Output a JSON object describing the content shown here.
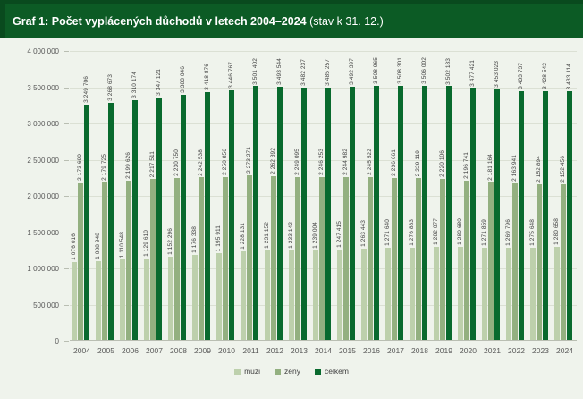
{
  "header": {
    "title": "Graf 1: Počet vyplácených důchodů v letech 2004–2024",
    "title_suffix": " (stav k 31. 12.)"
  },
  "colors": {
    "header_bg": "#0c5b25",
    "header_border": "#094a1e",
    "page_bg": "#eff3ec",
    "grid": "#dbe0d4",
    "axis": "#b9beb2",
    "value_text": "#3f3f3f",
    "tick_text": "#595959",
    "title_text": "#ffffff"
  },
  "chart_data": {
    "type": "bar",
    "title": "Graf 1: Počet vyplácených důchodů v letech 2004–2024 (stav k 31. 12.)",
    "categories": [
      2004,
      2005,
      2006,
      2007,
      2008,
      2009,
      2010,
      2011,
      2012,
      2013,
      2014,
      2015,
      2016,
      2017,
      2018,
      2019,
      2020,
      2021,
      2022,
      2023,
      2024
    ],
    "series": [
      {
        "name": "muži",
        "color": "#bdd0ac",
        "values": [
          1076016,
          1088948,
          1110548,
          1129610,
          1152296,
          1176338,
          1195911,
          1228131,
          1231152,
          1233142,
          1239004,
          1247415,
          1263443,
          1271640,
          1276883,
          1282077,
          1280680,
          1271859,
          1269796,
          1275648,
          1280658
        ]
      },
      {
        "name": "ženy",
        "color": "#93b080",
        "values": [
          2173690,
          2179725,
          2199626,
          2217511,
          2230750,
          2242538,
          2250856,
          2273271,
          2262392,
          2249095,
          2246253,
          2244982,
          2245522,
          2236661,
          2229119,
          2220106,
          2196741,
          2181164,
          2163941,
          2152894,
          2152456
        ]
      },
      {
        "name": "celkem",
        "color": "#096a2e",
        "values": [
          3249706,
          3268673,
          3310174,
          3347121,
          3383046,
          3418876,
          3446767,
          3501402,
          3493544,
          3482237,
          3485257,
          3492397,
          3508965,
          3508301,
          3506002,
          3502183,
          3477421,
          3453023,
          3433737,
          3428542,
          3433114
        ]
      }
    ],
    "xlabel": "",
    "ylabel": "",
    "ylim": [
      0,
      4000000
    ],
    "ytick_step": 500000,
    "grid": true,
    "legend_position": "bottom",
    "value_labels_rotation_deg": 90,
    "number_format": "space-thousands"
  }
}
